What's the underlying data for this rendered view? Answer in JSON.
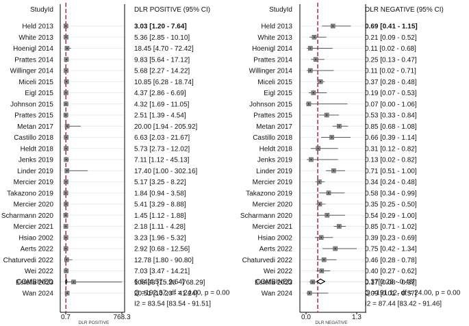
{
  "colors": {
    "accent_dashed": "#b03060",
    "marker": "#888888",
    "ci_line": "#555555",
    "grid": "#e6eef2",
    "axis": "#000000"
  },
  "chart_data": [
    {
      "type": "forest",
      "side": "left",
      "column_header": "StudyId",
      "stat_header": "DLR POSITIVE (95% CI)",
      "xlabel": "DLR POSITIVE",
      "xlim": [
        0.7,
        768.3
      ],
      "xticks": [
        "0.7",
        "768.3"
      ],
      "reference_line": 3.0,
      "studies": [
        {
          "name": "Held 2013",
          "est": 3.03,
          "lo": 1.2,
          "hi": 7.64,
          "label": "3.03 [1.20 - 7.64]",
          "bold": true
        },
        {
          "name": "White 2013",
          "est": 5.36,
          "lo": 2.85,
          "hi": 10.1,
          "label": "5.36 [2.85 - 10.10]"
        },
        {
          "name": "Hoenigl 2014",
          "est": 18.45,
          "lo": 4.7,
          "hi": 72.42,
          "label": "18.45 [4.70 - 72.42]"
        },
        {
          "name": "Prattes 2014",
          "est": 9.83,
          "lo": 5.64,
          "hi": 17.12,
          "label": "9.83 [5.64 - 17.12]"
        },
        {
          "name": "Willinger 2014",
          "est": 5.68,
          "lo": 2.27,
          "hi": 14.22,
          "label": "5.68 [2.27 - 14.22]"
        },
        {
          "name": "Miceli 2015",
          "est": 10.85,
          "lo": 6.28,
          "hi": 18.74,
          "label": "10.85 [6.28 - 18.74]"
        },
        {
          "name": "Eigl 2015",
          "est": 4.37,
          "lo": 2.86,
          "hi": 6.69,
          "label": "4.37 [2.86 - 6.69]"
        },
        {
          "name": "Johnson 2015",
          "est": 4.32,
          "lo": 1.69,
          "hi": 11.05,
          "label": "4.32 [1.69 - 11.05]"
        },
        {
          "name": "Prattes 2015",
          "est": 2.51,
          "lo": 1.39,
          "hi": 4.54,
          "label": "2.51 [1.39 - 4.54]"
        },
        {
          "name": "Metan 2017",
          "est": 20.0,
          "lo": 1.94,
          "hi": 205.92,
          "label": "20.00 [1.94 - 205.92]"
        },
        {
          "name": "Castillo 2018",
          "est": 6.63,
          "lo": 2.03,
          "hi": 21.67,
          "label": "6.63 [2.03 - 21.67]"
        },
        {
          "name": "Heldt 2018",
          "est": 5.73,
          "lo": 2.73,
          "hi": 12.02,
          "label": "5.73 [2.73 - 12.02]"
        },
        {
          "name": "Jenks 2019",
          "est": 7.11,
          "lo": 1.12,
          "hi": 45.13,
          "label": "7.11 [1.12 - 45.13]"
        },
        {
          "name": "Linder 2019",
          "est": 17.4,
          "lo": 1.0,
          "hi": 302.16,
          "label": "17.40 [1.00 - 302.16]"
        },
        {
          "name": "Mercier 2019",
          "est": 5.17,
          "lo": 3.25,
          "hi": 8.22,
          "label": "5.17 [3.25 - 8.22]"
        },
        {
          "name": "Takazono 2019",
          "est": 1.84,
          "lo": 0.94,
          "hi": 3.58,
          "label": "1.84 [0.94 - 3.58]"
        },
        {
          "name": "Mercier 2020",
          "est": 5.41,
          "lo": 3.29,
          "hi": 8.88,
          "label": "5.41 [3.29 - 8.88]"
        },
        {
          "name": "Scharmann 2020",
          "est": 1.45,
          "lo": 1.12,
          "hi": 1.88,
          "label": "1.45 [1.12 - 1.88]"
        },
        {
          "name": "Mercier 2021",
          "est": 2.18,
          "lo": 1.11,
          "hi": 4.28,
          "label": "2.18 [1.11 - 4.28]"
        },
        {
          "name": "Hsiao 2002",
          "est": 3.23,
          "lo": 1.96,
          "hi": 5.32,
          "label": "3.23 [1.96 - 5.32]"
        },
        {
          "name": "Aerts 2022",
          "est": 2.92,
          "lo": 0.68,
          "hi": 12.56,
          "label": "2.92 [0.68 - 12.56]"
        },
        {
          "name": "Chaturvedi 2022",
          "est": 12.78,
          "lo": 1.8,
          "hi": 90.8,
          "label": "12.78 [1.80 - 90.80]"
        },
        {
          "name": "Wei 2022",
          "est": 7.03,
          "lo": 3.47,
          "hi": 14.21,
          "label": "7.03 [3.47 - 14.21]"
        },
        {
          "name": "Estella 2023",
          "est": 108.33,
          "lo": 15.28,
          "hi": 768.29,
          "label": "108.33 [15.28 - 768.29]"
        },
        {
          "name": "Wan 2024",
          "est": 20.51,
          "lo": 10.2,
          "hi": 41.24,
          "label": "20.51 [10.20 - 41.24]"
        }
      ],
      "combined": {
        "name": "COMBINED",
        "est": 6.64,
        "lo": 4.57,
        "hi": 9.64,
        "label": "6.64[4.57 - 9.64]"
      },
      "heterogeneity": [
        "Q =192.37, df = 24.00, p =  0.00",
        "I2 = 83.54 [83.54 - 91.51]"
      ]
    },
    {
      "type": "forest",
      "side": "right",
      "column_header": "StudyId",
      "stat_header": "DLR NEGATIVE (95% CI)",
      "xlabel": "DLR NEGATIVE",
      "xlim": [
        0.0,
        1.3
      ],
      "xticks": [
        "0.0",
        "1.3"
      ],
      "reference_line": 0.3,
      "studies": [
        {
          "name": "Held 2013",
          "est": 0.69,
          "lo": 0.41,
          "hi": 1.15,
          "label": "0.69 [0.41 - 1.15]",
          "bold": true
        },
        {
          "name": "White 2013",
          "est": 0.21,
          "lo": 0.09,
          "hi": 0.52,
          "label": "0.21 [0.09 - 0.52]"
        },
        {
          "name": "Hoenigl 2014",
          "est": 0.11,
          "lo": 0.02,
          "hi": 0.68,
          "label": "0.11 [0.02 - 0.68]"
        },
        {
          "name": "Prattes 2014",
          "est": 0.25,
          "lo": 0.13,
          "hi": 0.47,
          "label": "0.25 [0.13 - 0.47]"
        },
        {
          "name": "Willinger 2014",
          "est": 0.11,
          "lo": 0.02,
          "hi": 0.71,
          "label": "0.11 [0.02 - 0.71]"
        },
        {
          "name": "Miceli 2015",
          "est": 0.37,
          "lo": 0.28,
          "hi": 0.48,
          "label": "0.37 [0.28 - 0.48]"
        },
        {
          "name": "Eigl 2015",
          "est": 0.19,
          "lo": 0.07,
          "hi": 0.53,
          "label": "0.19 [0.07 - 0.53]"
        },
        {
          "name": "Johnson 2015",
          "est": 0.07,
          "lo": 0.0,
          "hi": 1.06,
          "label": "0.07 [0.00 - 1.06]"
        },
        {
          "name": "Prattes 2015",
          "est": 0.53,
          "lo": 0.33,
          "hi": 0.84,
          "label": "0.53 [0.33 - 0.84]"
        },
        {
          "name": "Metan 2017",
          "est": 0.85,
          "lo": 0.68,
          "hi": 1.08,
          "label": "0.85 [0.68 - 1.08]"
        },
        {
          "name": "Castillo 2018",
          "est": 0.66,
          "lo": 0.39,
          "hi": 1.14,
          "label": "0.66 [0.39 - 1.14]"
        },
        {
          "name": "Heldt 2018",
          "est": 0.31,
          "lo": 0.12,
          "hi": 0.82,
          "label": "0.31 [0.12 - 0.82]"
        },
        {
          "name": "Jenks 2019",
          "est": 0.13,
          "lo": 0.02,
          "hi": 0.82,
          "label": "0.13 [0.02 - 0.82]"
        },
        {
          "name": "Linder 2019",
          "est": 0.71,
          "lo": 0.51,
          "hi": 1.0,
          "label": "0.71 [0.51 - 1.00]"
        },
        {
          "name": "Mercier 2019",
          "est": 0.34,
          "lo": 0.24,
          "hi": 0.48,
          "label": "0.34 [0.24 - 0.48]"
        },
        {
          "name": "Takazono 2019",
          "est": 0.58,
          "lo": 0.34,
          "hi": 0.99,
          "label": "0.58 [0.34 - 0.99]"
        },
        {
          "name": "Mercier 2020",
          "est": 0.35,
          "lo": 0.25,
          "hi": 0.5,
          "label": "0.35 [0.25 - 0.50]"
        },
        {
          "name": "Scharmann 2020",
          "est": 0.54,
          "lo": 0.29,
          "hi": 1.0,
          "label": "0.54 [0.29 - 1.00]"
        },
        {
          "name": "Mercier 2021",
          "est": 0.85,
          "lo": 0.71,
          "hi": 1.02,
          "label": "0.85 [0.71 - 1.02]"
        },
        {
          "name": "Hsiao 2002",
          "est": 0.39,
          "lo": 0.23,
          "hi": 0.69,
          "label": "0.39 [0.23 - 0.69]"
        },
        {
          "name": "Aerts 2022",
          "est": 0.75,
          "lo": 0.42,
          "hi": 1.34,
          "label": "0.75 [0.42 - 1.34]"
        },
        {
          "name": "Chaturvedi 2022",
          "est": 0.46,
          "lo": 0.28,
          "hi": 0.78,
          "label": "0.46 [0.28 - 0.78]"
        },
        {
          "name": "Wei 2022",
          "est": 0.4,
          "lo": 0.27,
          "hi": 0.62,
          "label": "0.40 [0.27 - 0.62]"
        },
        {
          "name": "Estella 2023",
          "est": 0.17,
          "lo": 0.08,
          "hi": 0.37,
          "label": "0.17 [0.08 - 0.37]"
        },
        {
          "name": "Wan 2024",
          "est": 0.09,
          "lo": 0.01,
          "hi": 0.57,
          "label": "0.09 [0.01 - 0.57]"
        }
      ],
      "combined": {
        "name": "COMBINED",
        "est": 0.37,
        "lo": 0.28,
        "hi": 0.48,
        "label": "0.37[0.28 - 0.48]"
      },
      "heterogeneity": [
        "Q =191.12, df = 24.00, p =  0.00",
        "I2 = 87.44 [83.42 - 91.46]"
      ]
    }
  ]
}
